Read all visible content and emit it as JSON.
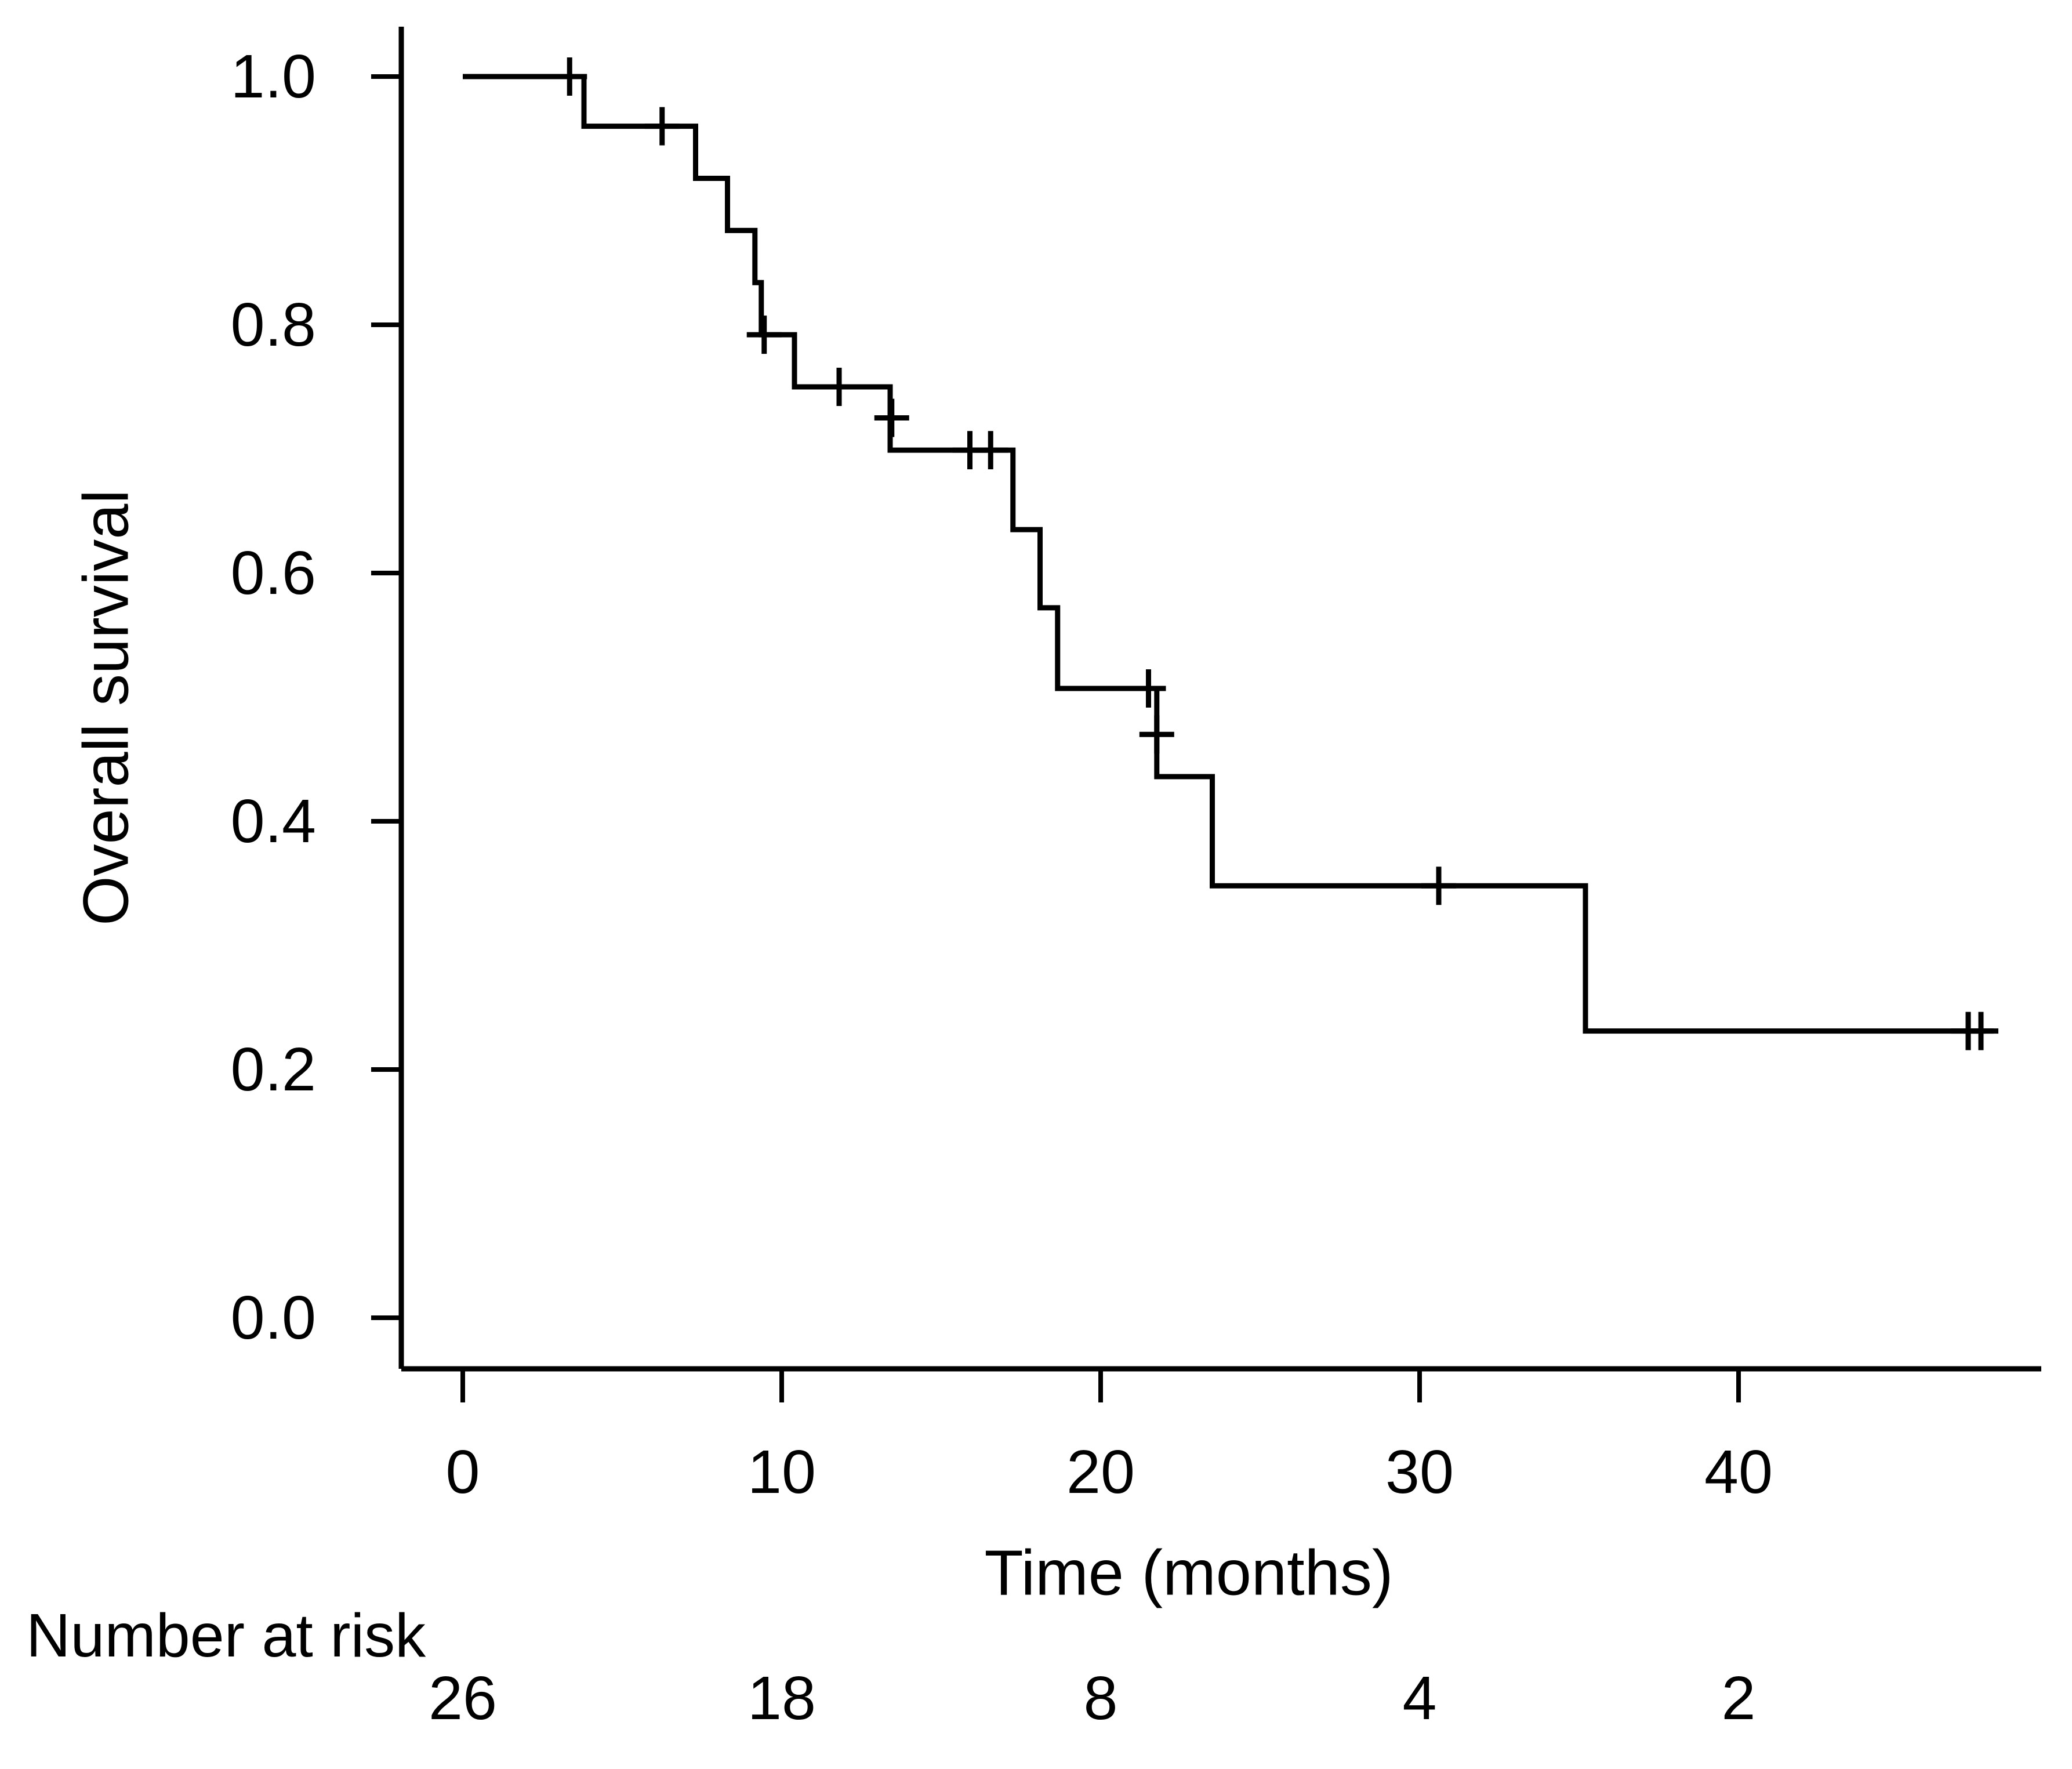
{
  "page": {
    "background": "#ffffff",
    "ink": "#000000"
  },
  "y_axis": {
    "label": "Overall survival",
    "tick_labels": [
      "1.0",
      "0.8",
      "0.6",
      "0.4",
      "0.2",
      "0.0"
    ],
    "tick_values": [
      1.0,
      0.8,
      0.6,
      0.4,
      0.2,
      0.0
    ]
  },
  "x_axis": {
    "label": "Time (months)",
    "tick_labels": [
      "0",
      "10",
      "20",
      "30",
      "40"
    ],
    "tick_values": [
      0,
      10,
      20,
      30,
      40
    ]
  },
  "risk_table": {
    "title": "Number at risk",
    "entries": [
      {
        "time": 0,
        "value": "26"
      },
      {
        "time": 10,
        "value": "18"
      },
      {
        "time": 20,
        "value": "8"
      },
      {
        "time": 30,
        "value": "4"
      },
      {
        "time": 40,
        "value": "2"
      }
    ]
  },
  "chart_data": {
    "type": "line",
    "variant": "kaplan_meier_step",
    "title": "",
    "xlabel": "Time (months)",
    "ylabel": "Overall survival",
    "xlim": [
      -1.9,
      49.5
    ],
    "ylim": [
      -0.04,
      1.04
    ],
    "grid": false,
    "legend": null,
    "n_at_start": 26,
    "survival_steps": [
      {
        "t_start": 0.0,
        "t_end": 3.8,
        "s": 1.0
      },
      {
        "t_start": 3.8,
        "t_end": 7.3,
        "s": 0.96
      },
      {
        "t_start": 7.3,
        "t_end": 8.3,
        "s": 0.918
      },
      {
        "t_start": 8.3,
        "t_end": 9.16,
        "s": 0.876
      },
      {
        "t_start": 9.16,
        "t_end": 9.36,
        "s": 0.834
      },
      {
        "t_start": 9.36,
        "t_end": 10.4,
        "s": 0.792
      },
      {
        "t_start": 10.4,
        "t_end": 13.4,
        "s": 0.75
      },
      {
        "t_start": 13.4,
        "t_end": 17.25,
        "s": 0.699
      },
      {
        "t_start": 17.25,
        "t_end": 18.1,
        "s": 0.635
      },
      {
        "t_start": 18.1,
        "t_end": 18.65,
        "s": 0.572
      },
      {
        "t_start": 18.65,
        "t_end": 21.76,
        "s": 0.507
      },
      {
        "t_start": 21.76,
        "t_end": 23.5,
        "s": 0.436
      },
      {
        "t_start": 23.5,
        "t_end": 35.2,
        "s": 0.348
      },
      {
        "t_start": 35.2,
        "t_end": 48.0,
        "s": 0.231
      }
    ],
    "censor_marks": [
      {
        "t": 3.35,
        "s": 1.0
      },
      {
        "t": 6.25,
        "s": 0.96
      },
      {
        "t": 9.45,
        "s": 0.792
      },
      {
        "t": 11.8,
        "s": 0.75
      },
      {
        "t": 13.45,
        "s": 0.725
      },
      {
        "t": 15.9,
        "s": 0.699
      },
      {
        "t": 16.55,
        "s": 0.699
      },
      {
        "t": 21.5,
        "s": 0.507
      },
      {
        "t": 21.76,
        "s": 0.47
      },
      {
        "t": 30.6,
        "s": 0.348
      },
      {
        "t": 47.2,
        "s": 0.231
      },
      {
        "t": 47.6,
        "s": 0.231
      }
    ]
  }
}
